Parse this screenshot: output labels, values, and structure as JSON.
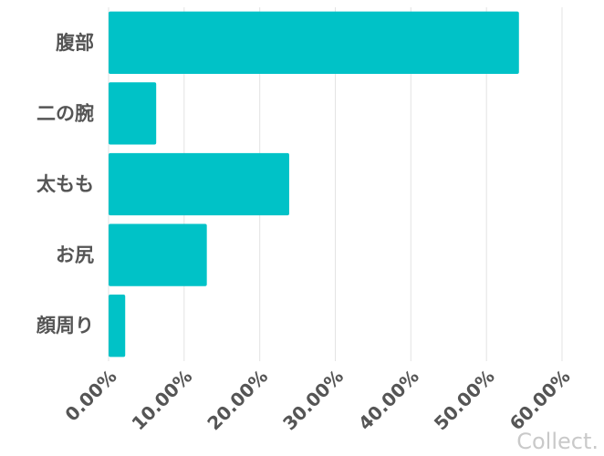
{
  "chart_data": {
    "type": "bar",
    "orientation": "horizontal",
    "categories": [
      "腹部",
      "二の腕",
      "太もも",
      "お尻",
      "顔周り"
    ],
    "values": [
      54.3,
      6.3,
      23.9,
      13.0,
      2.2
    ],
    "xlim": [
      0,
      60
    ],
    "x_ticks": [
      0,
      10,
      20,
      30,
      40,
      50,
      60
    ],
    "x_tick_labels": [
      "0.00%",
      "10.00%",
      "20.00%",
      "30.00%",
      "40.00%",
      "50.00%",
      "60.00%"
    ],
    "bar_color": "#00c2c7",
    "grid": true,
    "legend": "none"
  },
  "watermark": "Collect."
}
